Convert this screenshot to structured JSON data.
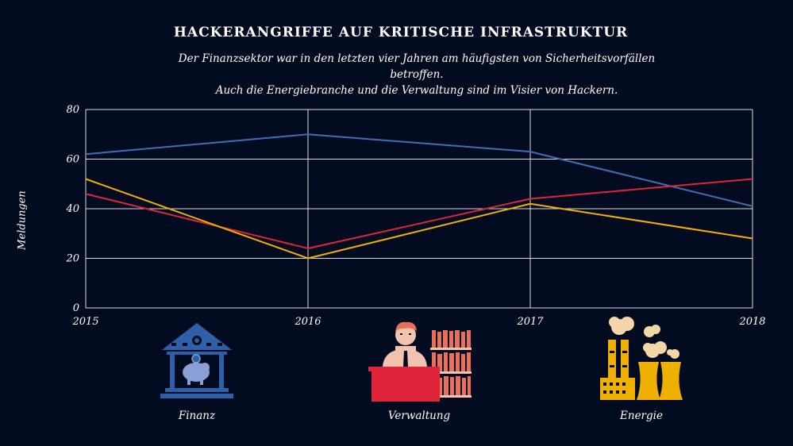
{
  "header": {
    "title": "HACKERANGRIFFE AUF KRITISCHE INFRASTRUKTUR",
    "subtitle_line1": "Der Finanzsektor war in den letzten vier Jahren am häufigsten von Sicherheitsvorfällen betroffen.",
    "subtitle_line2": "Auch die Energiebranche und die Verwaltung sind im Visier von Hackern."
  },
  "chart_data": {
    "type": "line",
    "x": [
      "2015",
      "2016",
      "2017",
      "2018"
    ],
    "ylabel": "Meldungen",
    "ylim": [
      0,
      80
    ],
    "yticks": [
      0,
      20,
      40,
      60,
      80
    ],
    "grid": true,
    "series": [
      {
        "name": "Finanz",
        "color": "#3f6fb5",
        "values": [
          62,
          70,
          63,
          41
        ]
      },
      {
        "name": "Verwaltung",
        "color": "#e0243a",
        "values": [
          46,
          24,
          44,
          52
        ]
      },
      {
        "name": "Energie",
        "color": "#f0b000",
        "values": [
          52,
          20,
          42,
          28
        ]
      }
    ]
  },
  "legend_icons": [
    {
      "label": "Finanz",
      "icon": "bank-piggy-icon",
      "color": "#2f5fa8"
    },
    {
      "label": "Verwaltung",
      "icon": "clerk-desk-icon",
      "color": "#e0243a"
    },
    {
      "label": "Energie",
      "icon": "power-plant-icon",
      "color": "#f0b000"
    }
  ]
}
